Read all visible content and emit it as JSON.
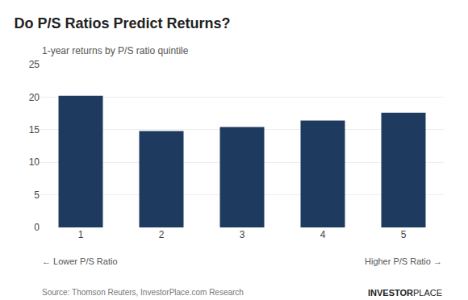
{
  "chart_data": {
    "type": "bar",
    "title": "Do P/S Ratios Predict Returns?",
    "subtitle": "1-year returns by P/S ratio quintile",
    "categories": [
      "1",
      "2",
      "3",
      "4",
      "5"
    ],
    "values": [
      20.2,
      14.8,
      15.4,
      16.4,
      17.6
    ],
    "color": "#1e3a5f",
    "ylim": [
      0,
      25
    ],
    "yticks": [
      0,
      5,
      10,
      15,
      20,
      25
    ],
    "grid": true,
    "annotations": [
      "← Lower P/S Ratio",
      "Higher P/S Ratio →",
      "Source: Thomson Reuters, InvestorPlace.com Research",
      "INVESTOR",
      "PLACE"
    ]
  }
}
